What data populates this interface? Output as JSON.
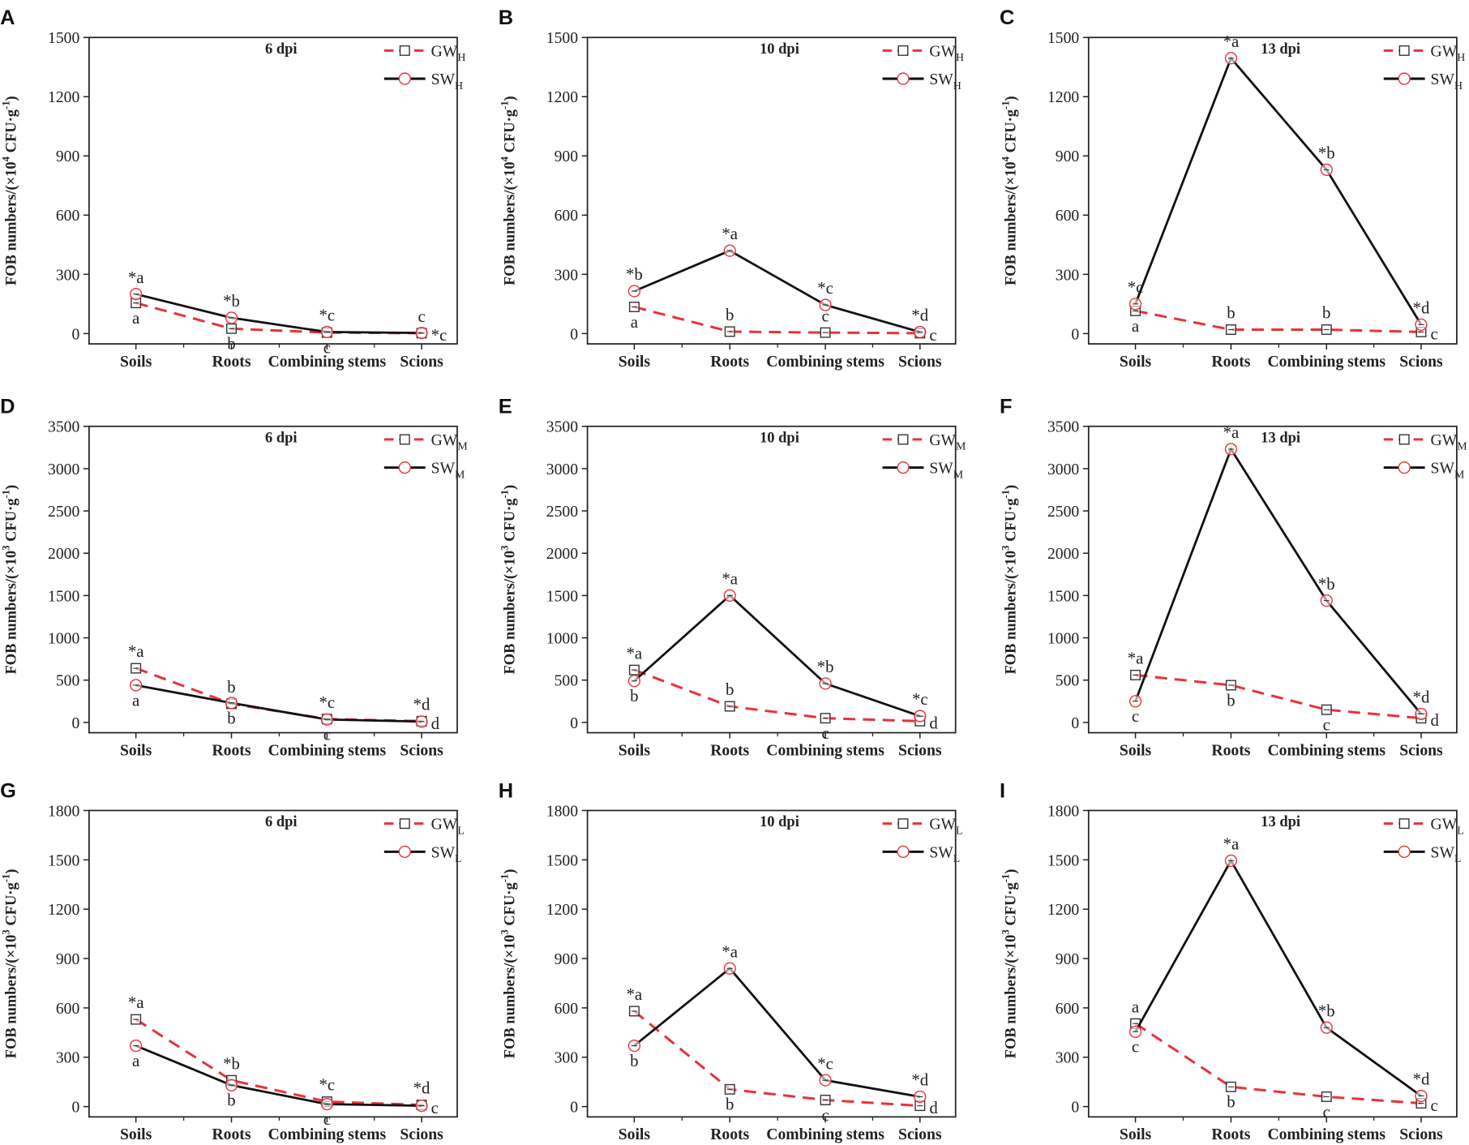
{
  "chart_data": {
    "type": "line",
    "categories": [
      "Soils",
      "Roots",
      "Combining stems",
      "Scions"
    ],
    "colors": {
      "GW": "#e8333a",
      "SW": "#111111",
      "marker_circle": "#e8333a",
      "marker_square": "#333333"
    },
    "panels": [
      {
        "letter": "A",
        "title": "6 dpi",
        "ylabel_pre": "FOB numbers/(×10",
        "ylabel_exp": "4",
        "ylabel_mid": " CFU·g",
        "ylabel_exp2": "-1",
        "ylabel_post": ")",
        "ylim": [
          0,
          1500
        ],
        "yticks": [
          0,
          300,
          600,
          900,
          1200,
          1500
        ],
        "sub": "H",
        "series": [
          {
            "name": "GW",
            "values": [
              155,
              25,
              5,
              2
            ],
            "labels": [
              "a",
              "b",
              "c",
              "c"
            ],
            "pos": [
              "below",
              "below",
              "below",
              "above"
            ]
          },
          {
            "name": "SW",
            "values": [
              200,
              80,
              8,
              3
            ],
            "labels": [
              "*a",
              "*b",
              "*c",
              "*c"
            ],
            "pos": [
              "above",
              "above",
              "above",
              "right"
            ]
          }
        ]
      },
      {
        "letter": "B",
        "title": "10 dpi",
        "ylabel_pre": "FOB numbers/(×10",
        "ylabel_exp": "4",
        "ylabel_mid": " CFU·g",
        "ylabel_exp2": "-1",
        "ylabel_post": ")",
        "ylim": [
          0,
          1500
        ],
        "yticks": [
          0,
          300,
          600,
          900,
          1200,
          1500
        ],
        "sub": "H",
        "series": [
          {
            "name": "GW",
            "values": [
              135,
              10,
              5,
              2
            ],
            "labels": [
              "a",
              "b",
              "c",
              "c"
            ],
            "pos": [
              "below",
              "above",
              "above",
              "right"
            ]
          },
          {
            "name": "SW",
            "values": [
              215,
              420,
              145,
              8
            ],
            "labels": [
              "*b",
              "*a",
              "*c",
              "*d"
            ],
            "pos": [
              "above",
              "above",
              "above",
              "above"
            ]
          }
        ]
      },
      {
        "letter": "C",
        "title": "13 dpi",
        "ylabel_pre": "FOB numbers/(×10",
        "ylabel_exp": "4",
        "ylabel_mid": " CFU·g",
        "ylabel_exp2": "-1",
        "ylabel_post": ")",
        "ylim": [
          0,
          1500
        ],
        "yticks": [
          0,
          300,
          600,
          900,
          1200,
          1500
        ],
        "sub": "H",
        "series": [
          {
            "name": "GW",
            "values": [
              115,
              20,
              20,
              8
            ],
            "labels": [
              "a",
              "b",
              "b",
              "c"
            ],
            "pos": [
              "below",
              "above",
              "above",
              "right"
            ]
          },
          {
            "name": "SW",
            "values": [
              150,
              1395,
              830,
              45
            ],
            "labels": [
              "*c",
              "*a",
              "*b",
              "*d"
            ],
            "pos": [
              "above",
              "above",
              "above",
              "above"
            ]
          }
        ]
      },
      {
        "letter": "D",
        "title": "6 dpi",
        "ylabel_pre": "FOB numbers/(×10",
        "ylabel_exp": "3",
        "ylabel_mid": " CFU·g",
        "ylabel_exp2": "-1",
        "ylabel_post": ")",
        "ylim": [
          0,
          3500
        ],
        "yticks": [
          0,
          500,
          1000,
          1500,
          2000,
          2500,
          3000,
          3500
        ],
        "sub": "M",
        "series": [
          {
            "name": "GW",
            "values": [
              640,
              220,
              40,
              15
            ],
            "labels": [
              "*a",
              "b",
              "*c",
              "*d"
            ],
            "pos": [
              "above",
              "above",
              "above",
              "above"
            ]
          },
          {
            "name": "SW",
            "values": [
              440,
              230,
              35,
              10
            ],
            "labels": [
              "a",
              "b",
              "c",
              "d"
            ],
            "pos": [
              "below",
              "below",
              "below",
              "right"
            ]
          }
        ]
      },
      {
        "letter": "E",
        "title": "10 dpi",
        "ylabel_pre": "FOB numbers/(×10",
        "ylabel_exp": "3",
        "ylabel_mid": " CFU·g",
        "ylabel_exp2": "-1",
        "ylabel_post": ")",
        "ylim": [
          0,
          3500
        ],
        "yticks": [
          0,
          500,
          1000,
          1500,
          2000,
          2500,
          3000,
          3500
        ],
        "sub": "M",
        "series": [
          {
            "name": "GW",
            "values": [
              620,
              190,
              50,
              15
            ],
            "labels": [
              "*a",
              "b",
              "c",
              "d"
            ],
            "pos": [
              "above",
              "above",
              "below",
              "right"
            ]
          },
          {
            "name": "SW",
            "values": [
              490,
              1500,
              460,
              75
            ],
            "labels": [
              "b",
              "*a",
              "*b",
              "*c"
            ],
            "pos": [
              "below",
              "above",
              "above",
              "above"
            ]
          }
        ]
      },
      {
        "letter": "F",
        "title": "13 dpi",
        "ylabel_pre": "FOB numbers/(×10",
        "ylabel_exp": "3",
        "ylabel_mid": " CFU·g",
        "ylabel_exp2": "-1",
        "ylabel_post": ")",
        "ylim": [
          0,
          3500
        ],
        "yticks": [
          0,
          500,
          1000,
          1500,
          2000,
          2500,
          3000,
          3500
        ],
        "sub": "M",
        "series": [
          {
            "name": "GW",
            "values": [
              560,
              440,
              150,
              50
            ],
            "labels": [
              "*a",
              "b",
              "c",
              "d"
            ],
            "pos": [
              "above",
              "below",
              "below",
              "right"
            ]
          },
          {
            "name": "SW",
            "values": [
              250,
              3230,
              1440,
              100
            ],
            "labels": [
              "c",
              "*a",
              "*b",
              "*d"
            ],
            "pos": [
              "below",
              "above",
              "above",
              "above"
            ]
          }
        ]
      },
      {
        "letter": "G",
        "title": "6 dpi",
        "ylabel_pre": "FOB numbers/(×10",
        "ylabel_exp": "3",
        "ylabel_mid": " CFU·g",
        "ylabel_exp2": "-1",
        "ylabel_post": ")",
        "ylim": [
          0,
          1800
        ],
        "yticks": [
          0,
          300,
          600,
          900,
          1200,
          1500,
          1800
        ],
        "sub": "L",
        "series": [
          {
            "name": "GW",
            "values": [
              530,
              160,
              30,
              10
            ],
            "labels": [
              "*a",
              "*b",
              "*c",
              "*d"
            ],
            "pos": [
              "above",
              "above",
              "above",
              "above"
            ]
          },
          {
            "name": "SW",
            "values": [
              370,
              130,
              15,
              5
            ],
            "labels": [
              "a",
              "b",
              "c",
              "c"
            ],
            "pos": [
              "below",
              "below",
              "below",
              "right"
            ]
          }
        ]
      },
      {
        "letter": "H",
        "title": "10 dpi",
        "ylabel_pre": "FOB numbers/(×10",
        "ylabel_exp": "3",
        "ylabel_mid": " CFU·g",
        "ylabel_exp2": "-1",
        "ylabel_post": ")",
        "ylim": [
          0,
          1800
        ],
        "yticks": [
          0,
          300,
          600,
          900,
          1200,
          1500,
          1800
        ],
        "sub": "L",
        "series": [
          {
            "name": "GW",
            "values": [
              580,
              105,
              40,
              5
            ],
            "labels": [
              "*a",
              "b",
              "c",
              "d"
            ],
            "pos": [
              "above",
              "below",
              "below",
              "right"
            ]
          },
          {
            "name": "SW",
            "values": [
              370,
              840,
              160,
              60
            ],
            "labels": [
              "b",
              "*a",
              "*c",
              "*d"
            ],
            "pos": [
              "below",
              "above",
              "above",
              "above"
            ]
          }
        ]
      },
      {
        "letter": "I",
        "title": "13 dpi",
        "ylabel_pre": "FOB numbers/(×10",
        "ylabel_exp": "3",
        "ylabel_mid": " CFU·g",
        "ylabel_exp2": "-1",
        "ylabel_post": ")",
        "ylim": [
          0,
          1800
        ],
        "yticks": [
          0,
          300,
          600,
          900,
          1200,
          1500,
          1800
        ],
        "sub": "L",
        "series": [
          {
            "name": "GW",
            "values": [
              505,
              120,
              60,
              20
            ],
            "labels": [
              "a",
              "b",
              "c",
              "c"
            ],
            "pos": [
              "above",
              "below",
              "below",
              "right"
            ]
          },
          {
            "name": "SW",
            "values": [
              455,
              1495,
              480,
              65
            ],
            "labels": [
              "c",
              "*a",
              "*b",
              "*d"
            ],
            "pos": [
              "below",
              "above",
              "above",
              "above"
            ]
          }
        ]
      }
    ]
  }
}
